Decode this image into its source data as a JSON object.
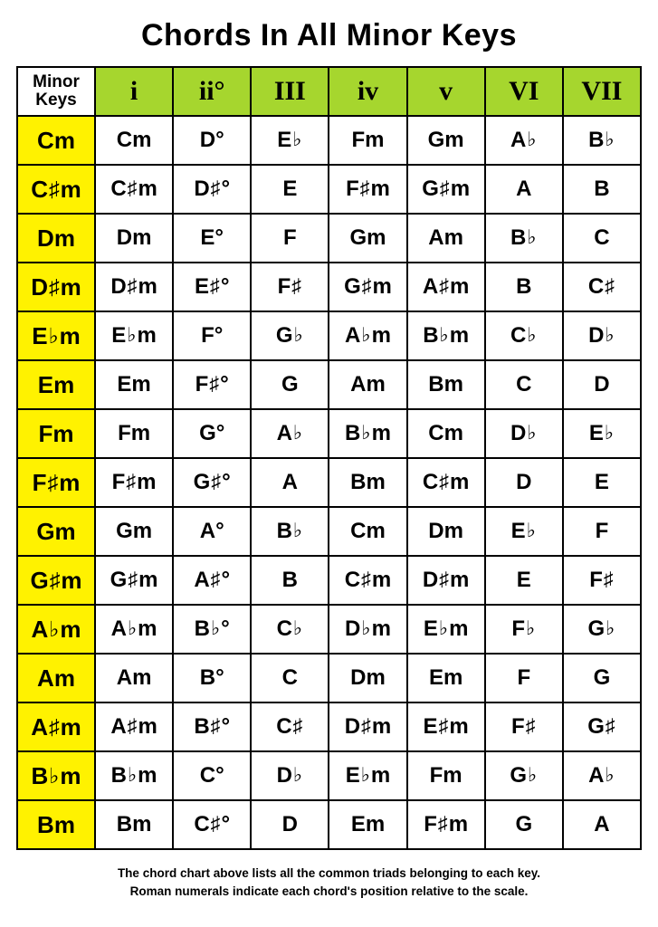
{
  "title": "Chords In All Minor Keys",
  "corner_label": "Minor Keys",
  "header_bg": "#a6d62e",
  "key_bg": "#fff200",
  "numerals": [
    "i",
    "ii°",
    "III",
    "iv",
    "v",
    "VI",
    "VII"
  ],
  "rows": [
    {
      "key": "Cm",
      "chords": [
        "Cm",
        "D°",
        "E♭",
        "Fm",
        "Gm",
        "A♭",
        "B♭"
      ]
    },
    {
      "key": "C♯m",
      "chords": [
        "C♯m",
        "D♯°",
        "E",
        "F♯m",
        "G♯m",
        "A",
        "B"
      ]
    },
    {
      "key": "Dm",
      "chords": [
        "Dm",
        "E°",
        "F",
        "Gm",
        "Am",
        "B♭",
        "C"
      ]
    },
    {
      "key": "D♯m",
      "chords": [
        "D♯m",
        "E♯°",
        "F♯",
        "G♯m",
        "A♯m",
        "B",
        "C♯"
      ]
    },
    {
      "key": "E♭m",
      "chords": [
        "E♭m",
        "F°",
        "G♭",
        "A♭m",
        "B♭m",
        "C♭",
        "D♭"
      ]
    },
    {
      "key": "Em",
      "chords": [
        "Em",
        "F♯°",
        "G",
        "Am",
        "Bm",
        "C",
        "D"
      ]
    },
    {
      "key": "Fm",
      "chords": [
        "Fm",
        "G°",
        "A♭",
        "B♭m",
        "Cm",
        "D♭",
        "E♭"
      ]
    },
    {
      "key": "F♯m",
      "chords": [
        "F♯m",
        "G♯°",
        "A",
        "Bm",
        "C♯m",
        "D",
        "E"
      ]
    },
    {
      "key": "Gm",
      "chords": [
        "Gm",
        "A°",
        "B♭",
        "Cm",
        "Dm",
        "E♭",
        "F"
      ]
    },
    {
      "key": "G♯m",
      "chords": [
        "G♯m",
        "A♯°",
        "B",
        "C♯m",
        "D♯m",
        "E",
        "F♯"
      ]
    },
    {
      "key": "A♭m",
      "chords": [
        "A♭m",
        "B♭°",
        "C♭",
        "D♭m",
        "E♭m",
        "F♭",
        "G♭"
      ]
    },
    {
      "key": "Am",
      "chords": [
        "Am",
        "B°",
        "C",
        "Dm",
        "Em",
        "F",
        "G"
      ]
    },
    {
      "key": "A♯m",
      "chords": [
        "A♯m",
        "B♯°",
        "C♯",
        "D♯m",
        "E♯m",
        "F♯",
        "G♯"
      ]
    },
    {
      "key": "B♭m",
      "chords": [
        "B♭m",
        "C°",
        "D♭",
        "E♭m",
        "Fm",
        "G♭",
        "A♭"
      ]
    },
    {
      "key": "Bm",
      "chords": [
        "Bm",
        "C♯°",
        "D",
        "Em",
        "F♯m",
        "G",
        "A"
      ]
    }
  ],
  "footnote_line1": "The chord chart above lists all the common triads belonging to each key.",
  "footnote_line2": "Roman numerals indicate each chord's position relative to the scale."
}
